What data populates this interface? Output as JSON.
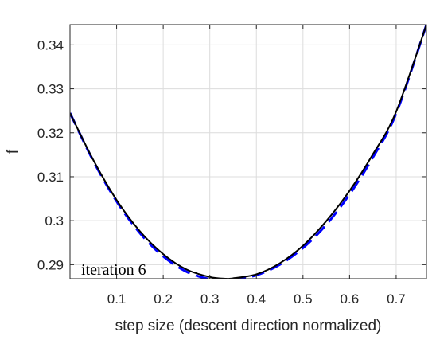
{
  "chart_data": {
    "type": "line",
    "title": "",
    "xlabel": "step size (descent direction normalized)",
    "ylabel": "f",
    "xlim": [
      0,
      0.765
    ],
    "ylim": [
      0.2868,
      0.3446
    ],
    "xticks": [
      0.1,
      0.2,
      0.3,
      0.4,
      0.5,
      0.6,
      0.7
    ],
    "xtick_labels": [
      "0.1",
      "0.2",
      "0.3",
      "0.4",
      "0.5",
      "0.6",
      "0.7"
    ],
    "yticks": [
      0.29,
      0.3,
      0.31,
      0.32,
      0.33,
      0.34
    ],
    "ytick_labels": [
      "0.29",
      "0.3",
      "0.31",
      "0.32",
      "0.33",
      "0.34"
    ],
    "grid": true,
    "legend": null,
    "annotation": "iteration 6",
    "series": [
      {
        "style": "solid",
        "color": "#000000",
        "x": [
          0.0,
          0.05,
          0.1,
          0.15,
          0.2,
          0.25,
          0.3,
          0.335,
          0.35,
          0.4,
          0.45,
          0.5,
          0.55,
          0.6,
          0.65,
          0.7,
          0.765
        ],
        "y": [
          0.3245,
          0.3138,
          0.3047,
          0.2976,
          0.2924,
          0.2889,
          0.2872,
          0.2868,
          0.2869,
          0.2878,
          0.2903,
          0.2943,
          0.2999,
          0.3068,
          0.3151,
          0.3248,
          0.3446
        ]
      },
      {
        "style": "dashed",
        "color": "#0000ff",
        "x": [
          0.0,
          0.05,
          0.1,
          0.15,
          0.2,
          0.25,
          0.3,
          0.34,
          0.35,
          0.4,
          0.45,
          0.5,
          0.55,
          0.6,
          0.65,
          0.7,
          0.765
        ],
        "y": [
          0.3245,
          0.3136,
          0.3044,
          0.2972,
          0.2919,
          0.2884,
          0.2867,
          0.2865,
          0.2866,
          0.2876,
          0.29,
          0.2938,
          0.2991,
          0.306,
          0.3144,
          0.3244,
          0.3446
        ]
      }
    ]
  }
}
